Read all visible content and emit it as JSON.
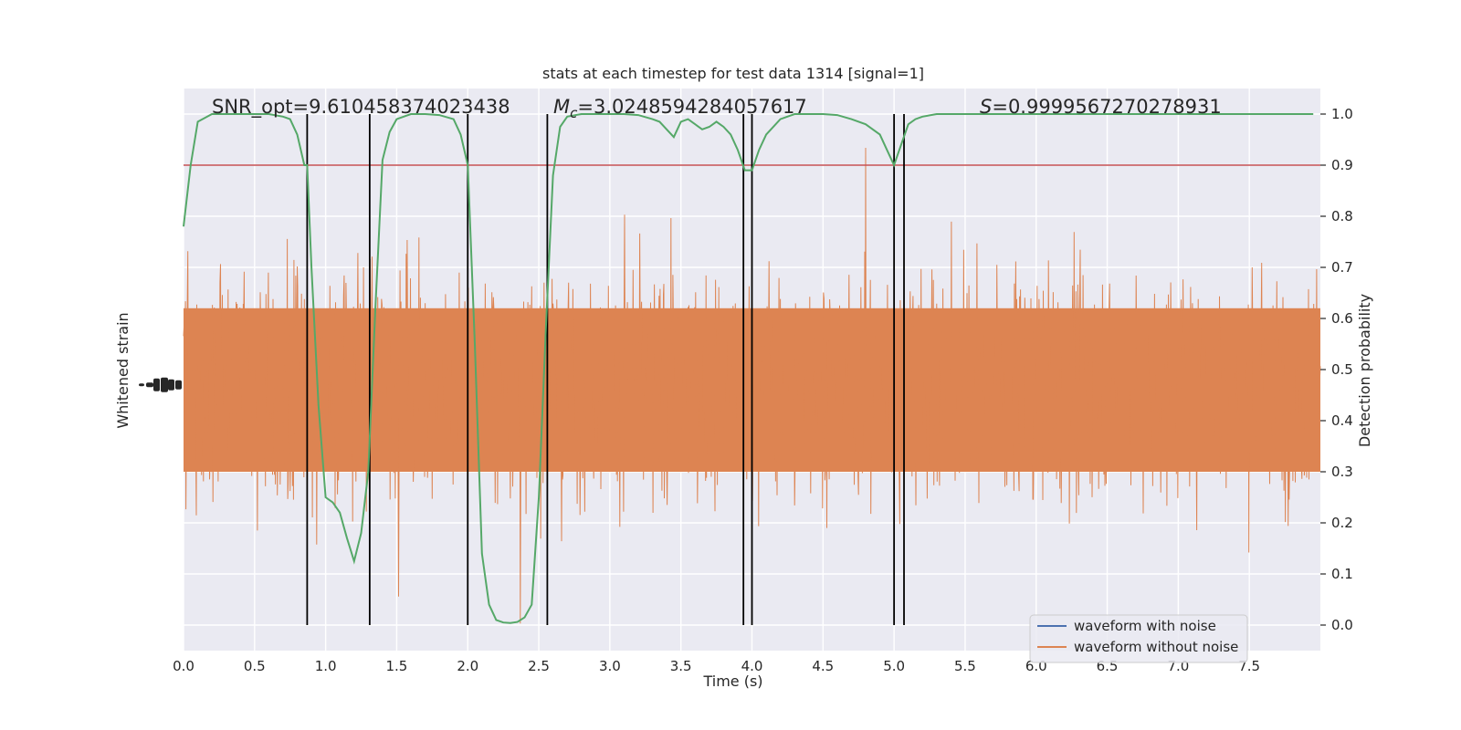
{
  "chart_data": {
    "type": "line",
    "title": "stats at each timestep for test data 1314 [signal=1]",
    "xlabel": "Time (s)",
    "ylabel_left": "Whitened strain",
    "ylabel_right": "Detection probability",
    "xlim": [
      0.0,
      8.0
    ],
    "ylim_right": [
      -0.05,
      1.05
    ],
    "grid": true,
    "legend_placement": "lower-right",
    "x_ticks": [
      "0.0",
      "0.5",
      "1.0",
      "1.5",
      "2.0",
      "2.5",
      "3.0",
      "3.5",
      "4.0",
      "4.5",
      "5.0",
      "5.5",
      "6.0",
      "6.5",
      "7.0",
      "7.5"
    ],
    "y_ticks_right": [
      "0.0",
      "0.1",
      "0.2",
      "0.3",
      "0.4",
      "0.5",
      "0.6",
      "0.7",
      "0.8",
      "0.9",
      "1.0"
    ],
    "annotations": {
      "snr": "SNR_opt=9.610458374023438",
      "mc_symbol": "M",
      "mc_sub": "c",
      "mc_value": "=3.0248594284057617",
      "s_symbol": "S",
      "s_value": "=0.9999567270278931"
    },
    "threshold": 0.9,
    "vertical_lines": [
      0.87,
      1.31,
      2.0,
      2.56,
      3.94,
      4.0,
      5.0,
      5.07
    ],
    "series": [
      {
        "name": "waveform with noise",
        "color": "#4c72b0"
      },
      {
        "name": "waveform without noise",
        "color": "#dd8452"
      }
    ],
    "probability_curve": {
      "color": "#55a868",
      "x": [
        0.0,
        0.05,
        0.1,
        0.2,
        0.3,
        0.4,
        0.5,
        0.6,
        0.7,
        0.75,
        0.8,
        0.85,
        0.87,
        0.9,
        0.95,
        1.0,
        1.05,
        1.1,
        1.15,
        1.2,
        1.25,
        1.3,
        1.35,
        1.4,
        1.45,
        1.5,
        1.6,
        1.7,
        1.8,
        1.9,
        1.95,
        2.0,
        2.05,
        2.1,
        2.15,
        2.2,
        2.25,
        2.3,
        2.35,
        2.4,
        2.45,
        2.5,
        2.55,
        2.6,
        2.65,
        2.7,
        2.8,
        2.9,
        3.0,
        3.1,
        3.2,
        3.3,
        3.35,
        3.4,
        3.45,
        3.5,
        3.55,
        3.6,
        3.65,
        3.7,
        3.75,
        3.8,
        3.85,
        3.9,
        3.95,
        4.0,
        4.05,
        4.1,
        4.2,
        4.3,
        4.4,
        4.5,
        4.6,
        4.7,
        4.8,
        4.9,
        4.95,
        5.0,
        5.05,
        5.1,
        5.15,
        5.2,
        5.3,
        5.5,
        6.0,
        6.5,
        7.0,
        7.5,
        7.95
      ],
      "y": [
        0.78,
        0.9,
        0.985,
        1.0,
        1.0,
        1.0,
        1.0,
        1.0,
        0.995,
        0.99,
        0.96,
        0.9,
        0.9,
        0.7,
        0.43,
        0.25,
        0.24,
        0.22,
        0.17,
        0.125,
        0.18,
        0.3,
        0.62,
        0.91,
        0.965,
        0.99,
        1.0,
        1.0,
        0.998,
        0.99,
        0.96,
        0.9,
        0.55,
        0.14,
        0.04,
        0.01,
        0.005,
        0.004,
        0.006,
        0.015,
        0.04,
        0.25,
        0.58,
        0.88,
        0.975,
        0.995,
        1.0,
        1.0,
        1.0,
        1.0,
        0.998,
        0.99,
        0.985,
        0.97,
        0.955,
        0.985,
        0.99,
        0.98,
        0.97,
        0.975,
        0.985,
        0.975,
        0.96,
        0.93,
        0.89,
        0.89,
        0.93,
        0.96,
        0.99,
        1.0,
        1.0,
        1.0,
        0.998,
        0.99,
        0.98,
        0.96,
        0.93,
        0.9,
        0.94,
        0.98,
        0.99,
        0.995,
        1.0,
        1.0,
        1.0,
        1.0,
        1.0,
        1.0,
        1.0
      ]
    }
  }
}
